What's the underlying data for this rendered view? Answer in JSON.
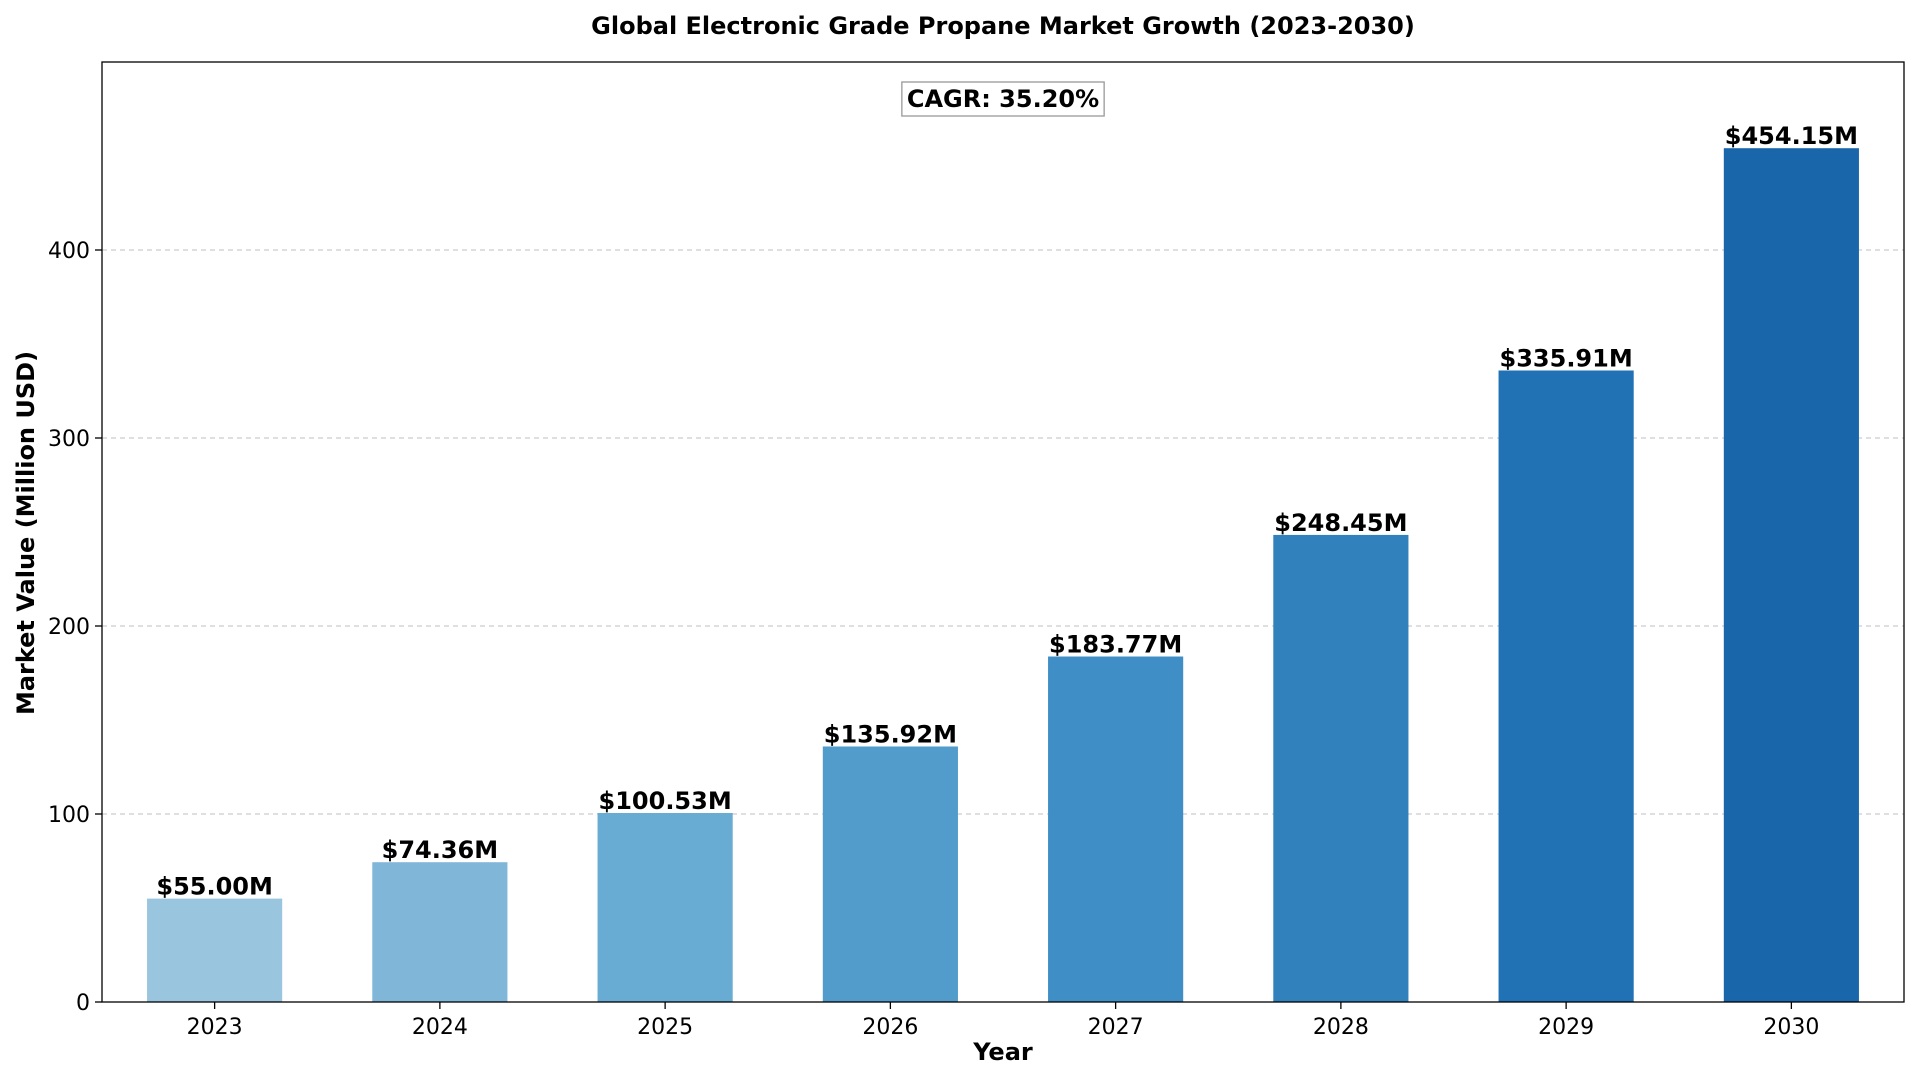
{
  "chart_data": {
    "type": "bar",
    "title": "Global Electronic Grade Propane Market Growth (2023-2030)",
    "xlabel": "Year",
    "ylabel": "Market Value (Million USD)",
    "categories": [
      "2023",
      "2024",
      "2025",
      "2026",
      "2027",
      "2028",
      "2029",
      "2030"
    ],
    "values": [
      55.0,
      74.36,
      100.53,
      135.92,
      183.77,
      248.45,
      335.91,
      454.15
    ],
    "data_labels": [
      "$55.00M",
      "$74.36M",
      "$100.53M",
      "$135.92M",
      "$183.77M",
      "$248.45M",
      "$335.91M",
      "$454.15M"
    ],
    "colors": [
      "#9ac5df",
      "#80b6d8",
      "#68abd3",
      "#529ccc",
      "#3f8fc6",
      "#3181bd",
      "#2171b5",
      "#1966aa"
    ],
    "ylim": [
      0,
      500
    ],
    "yticks": [
      0,
      100,
      200,
      300,
      400
    ],
    "grid": true,
    "annotation": "CAGR: 35.20%"
  }
}
